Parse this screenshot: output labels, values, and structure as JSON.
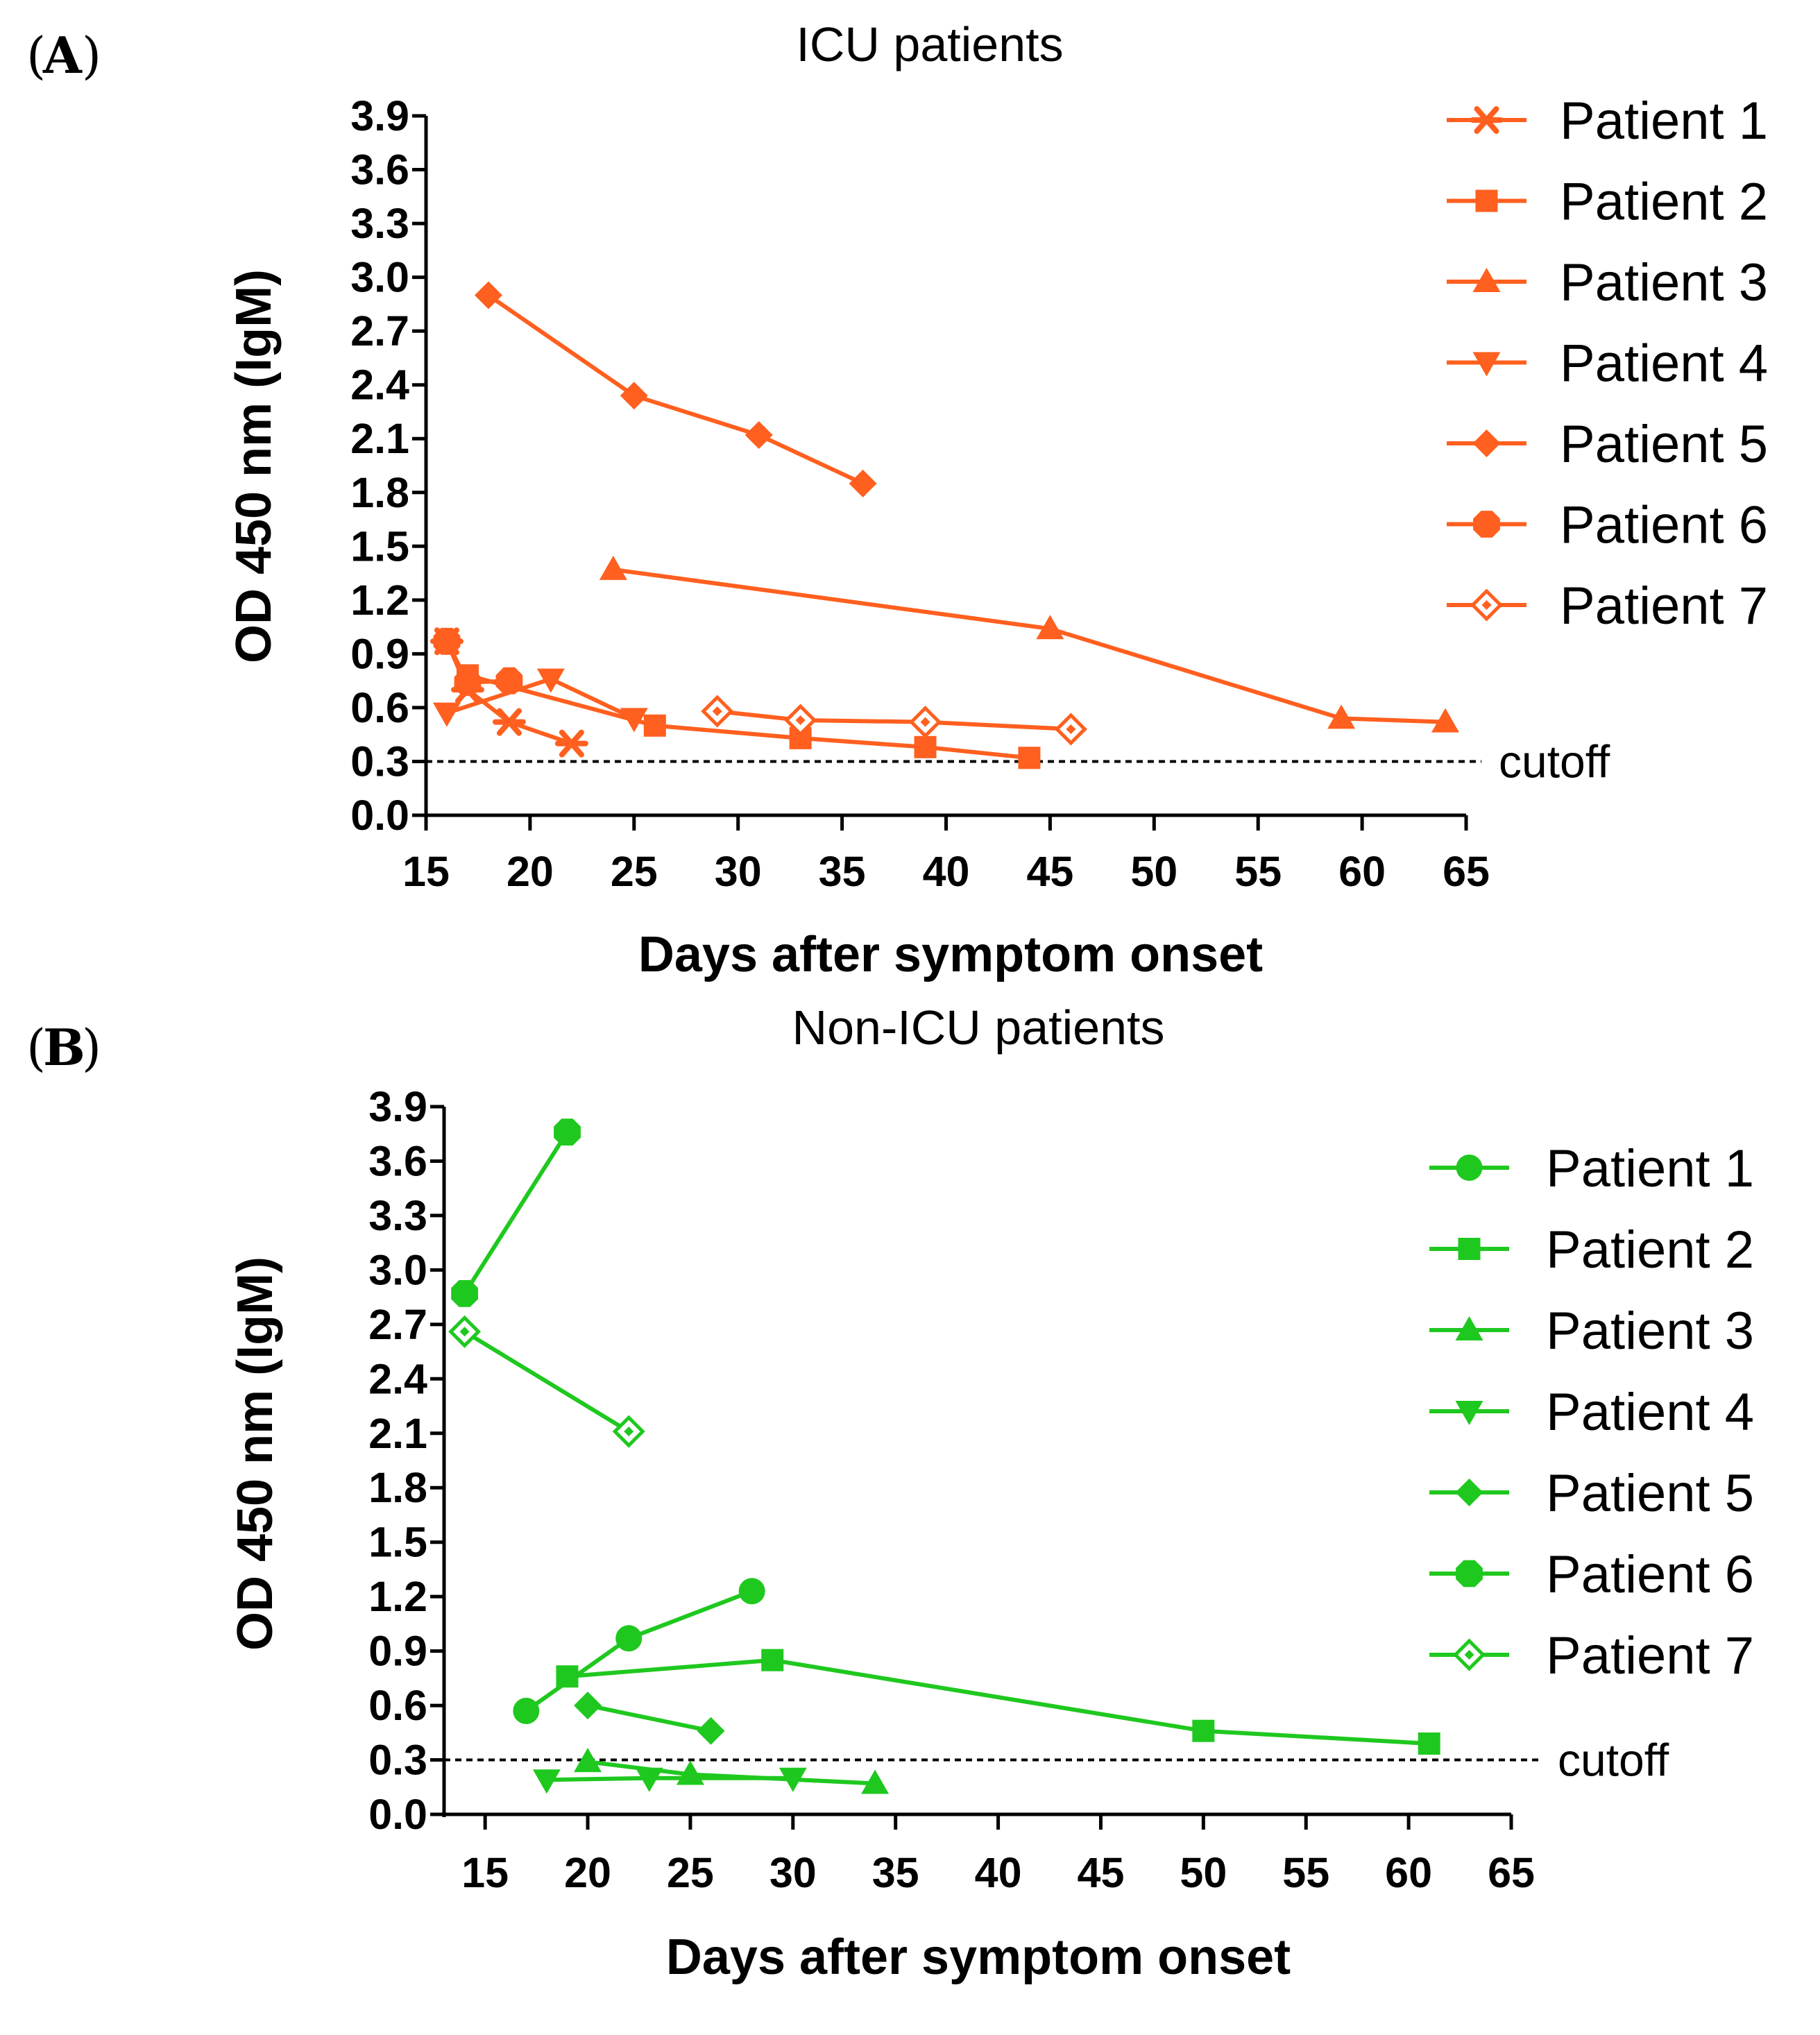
{
  "figure": {
    "panels": [
      {
        "letter": "A",
        "title": "ICU patients"
      },
      {
        "letter": "B",
        "title": "Non-ICU patients"
      }
    ]
  },
  "chart_data": [
    {
      "type": "line",
      "panel": "A",
      "title": "ICU patients",
      "xlabel": "Days after symptom onset",
      "ylabel": "OD 450 nm (IgM)",
      "xlim": [
        15,
        65
      ],
      "ylim": [
        0,
        3.9
      ],
      "xticks": [
        15,
        20,
        25,
        30,
        35,
        40,
        45,
        50,
        55,
        60,
        65
      ],
      "yticks": [
        "0.0",
        "0.3",
        "0.6",
        "0.9",
        "1.2",
        "1.5",
        "1.8",
        "2.1",
        "2.4",
        "2.7",
        "3.0",
        "3.3",
        "3.6",
        "3.9"
      ],
      "color": "#ff5f1f",
      "legend_position": "top-right",
      "cutoff": {
        "value": 0.3,
        "label": "cutoff"
      },
      "series": [
        {
          "name": "Patient 1",
          "marker": "asterisk",
          "x": [
            16,
            17,
            19,
            22
          ],
          "y": [
            0.97,
            0.7,
            0.52,
            0.4
          ]
        },
        {
          "name": "Patient 2",
          "marker": "square",
          "x": [
            17,
            26,
            33,
            39,
            44
          ],
          "y": [
            0.78,
            0.5,
            0.43,
            0.38,
            0.32
          ]
        },
        {
          "name": "Patient 3",
          "marker": "triangle-up",
          "x": [
            24,
            45,
            59,
            64
          ],
          "y": [
            1.37,
            1.04,
            0.54,
            0.52
          ]
        },
        {
          "name": "Patient 4",
          "marker": "triangle-down",
          "x": [
            16,
            21,
            25
          ],
          "y": [
            0.57,
            0.76,
            0.54
          ]
        },
        {
          "name": "Patient 5",
          "marker": "diamond",
          "x": [
            18,
            25,
            31,
            36
          ],
          "y": [
            2.9,
            2.34,
            2.12,
            1.85
          ]
        },
        {
          "name": "Patient 6",
          "marker": "octagon",
          "x": [
            16,
            17,
            19
          ],
          "y": [
            0.97,
            0.74,
            0.75
          ]
        },
        {
          "name": "Patient 7",
          "marker": "diamond-open",
          "x": [
            29,
            33,
            39,
            46
          ],
          "y": [
            0.58,
            0.53,
            0.52,
            0.48
          ]
        }
      ]
    },
    {
      "type": "line",
      "panel": "B",
      "title": "Non-ICU patients",
      "xlabel": "Days after symptom onset",
      "ylabel": "OD 450 nm (IgM)",
      "xlim": [
        13,
        65
      ],
      "ylim": [
        0,
        3.9
      ],
      "xticks": [
        15,
        20,
        25,
        30,
        35,
        40,
        45,
        50,
        55,
        60,
        65
      ],
      "yticks": [
        "0.0",
        "0.3",
        "0.6",
        "0.9",
        "1.2",
        "1.5",
        "1.8",
        "2.1",
        "2.4",
        "2.7",
        "3.0",
        "3.3",
        "3.6",
        "3.9"
      ],
      "color": "#1fc81f",
      "legend_position": "right",
      "cutoff": {
        "value": 0.3,
        "label": "cutoff"
      },
      "series": [
        {
          "name": "Patient 1",
          "marker": "circle",
          "x": [
            17,
            22,
            28
          ],
          "y": [
            0.57,
            0.97,
            1.23
          ]
        },
        {
          "name": "Patient 2",
          "marker": "square",
          "x": [
            19,
            29,
            50,
            61
          ],
          "y": [
            0.76,
            0.85,
            0.46,
            0.39
          ]
        },
        {
          "name": "Patient 3",
          "marker": "triangle-up",
          "x": [
            20,
            25,
            34
          ],
          "y": [
            0.29,
            0.22,
            0.17
          ]
        },
        {
          "name": "Patient 4",
          "marker": "triangle-down",
          "x": [
            18,
            23,
            30
          ],
          "y": [
            0.19,
            0.2,
            0.2
          ]
        },
        {
          "name": "Patient 5",
          "marker": "diamond",
          "x": [
            20,
            26
          ],
          "y": [
            0.6,
            0.46
          ]
        },
        {
          "name": "Patient 6",
          "marker": "octagon",
          "x": [
            14,
            19
          ],
          "y": [
            2.87,
            3.76
          ]
        },
        {
          "name": "Patient 7",
          "marker": "diamond-open",
          "x": [
            14,
            22
          ],
          "y": [
            2.66,
            2.11
          ]
        }
      ]
    }
  ]
}
